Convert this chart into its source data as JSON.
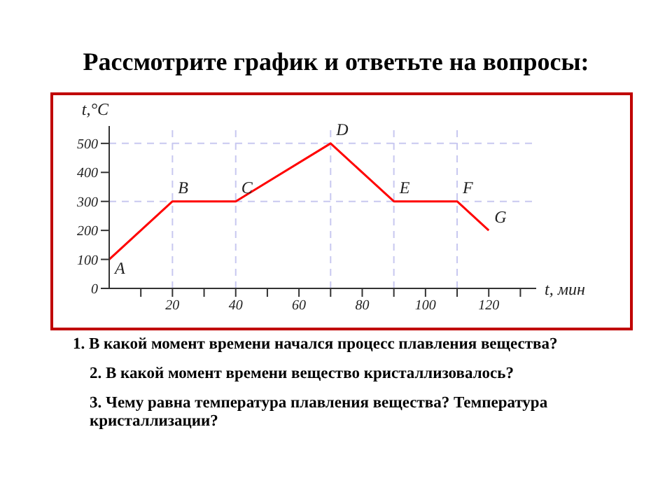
{
  "chart_data": {
    "type": "line",
    "title": "Рассмотрите график и ответьте на вопросы:",
    "xlabel": "t, мин",
    "ylabel": "t,°C",
    "x": [
      0,
      20,
      40,
      70,
      90,
      110,
      120
    ],
    "series": [
      {
        "color": "#ff0000",
        "values": [
          100,
          300,
          300,
          500,
          300,
          300,
          200
        ]
      }
    ],
    "xlim": [
      0,
      135
    ],
    "xticks": [
      {
        "value": 10,
        "label": null
      },
      20,
      {
        "value": 30,
        "label": null
      },
      40,
      {
        "value": 50,
        "label": null
      },
      60,
      {
        "value": 70,
        "label": null
      },
      80,
      {
        "value": 90,
        "label": null
      },
      100,
      {
        "value": 110,
        "label": null
      },
      120,
      {
        "value": 130,
        "label": null
      }
    ],
    "ylim": [
      0,
      560
    ],
    "yticks": [
      0,
      100,
      200,
      300,
      400,
      500
    ],
    "marker": "none",
    "line_style": "solid",
    "ref_lines": [
      {
        "axis": "y",
        "value": 300,
        "color": "#c8c8f0",
        "line_style": "dashed"
      },
      {
        "axis": "y",
        "value": 500,
        "color": "#c8c8f0",
        "line_style": "dashed"
      },
      {
        "axis": "x",
        "value": 20,
        "color": "#c8c8f0",
        "line_style": "dashed"
      },
      {
        "axis": "x",
        "value": 40,
        "color": "#c8c8f0",
        "line_style": "dashed"
      },
      {
        "axis": "x",
        "value": 70,
        "color": "#c8c8f0",
        "line_style": "dashed"
      },
      {
        "axis": "x",
        "value": 90,
        "color": "#c8c8f0",
        "line_style": "dashed"
      },
      {
        "axis": "x",
        "value": 110,
        "color": "#c8c8f0",
        "line_style": "dashed"
      }
    ],
    "annotations": [
      {
        "text": "A",
        "x": 0,
        "y": 100
      },
      {
        "text": "B",
        "x": 20,
        "y": 300
      },
      {
        "text": "C",
        "x": 40,
        "y": 300
      },
      {
        "text": "D",
        "x": 70,
        "y": 500
      },
      {
        "text": "E",
        "x": 90,
        "y": 300
      },
      {
        "text": "F",
        "x": 110,
        "y": 300
      },
      {
        "text": "G",
        "x": 120,
        "y": 200
      },
      "1. В какой момент времени начался процесс  плавления вещества?",
      "2. В какой  момент времени  вещество  кристаллизовалось?",
      "3. Чему равна  температура плавления вещества?  Температура кристаллизации?"
    ]
  }
}
